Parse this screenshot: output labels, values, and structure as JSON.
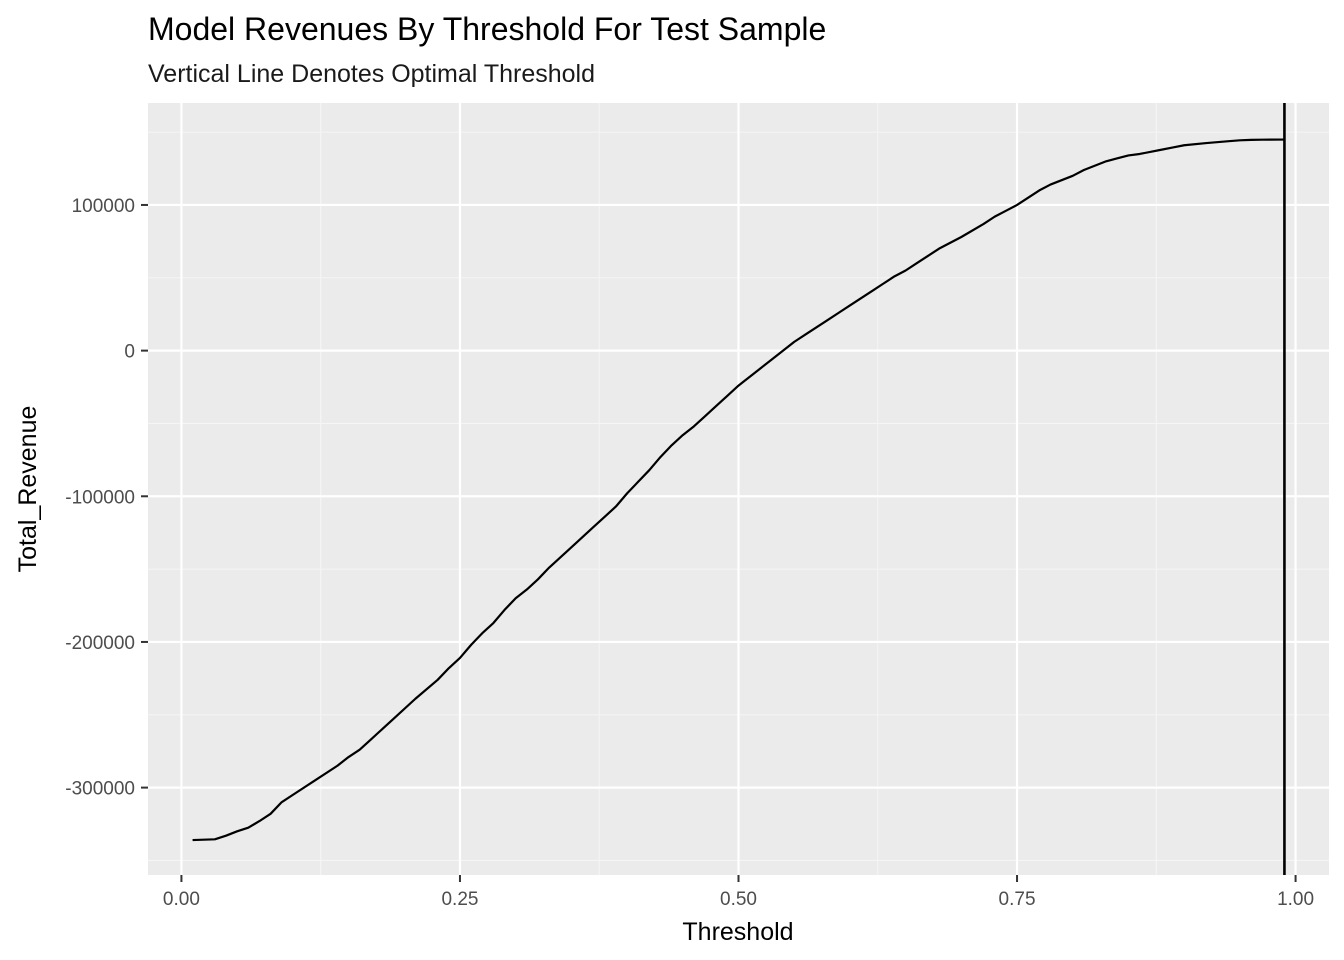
{
  "chart_data": {
    "type": "line",
    "title": "Model Revenues By Threshold For Test Sample",
    "subtitle": "Vertical Line Denotes Optimal Threshold",
    "xlabel": "Threshold",
    "ylabel": "Total_Revenue",
    "xlim": [
      -0.03,
      1.03
    ],
    "ylim": [
      -360000,
      170000
    ],
    "x_ticks": [
      0.0,
      0.25,
      0.5,
      0.75,
      1.0
    ],
    "x_tick_labels": [
      "0.00",
      "0.25",
      "0.50",
      "0.75",
      "1.00"
    ],
    "y_ticks": [
      -300000,
      -200000,
      -100000,
      0,
      100000
    ],
    "y_tick_labels": [
      "-300000",
      "-200000",
      "-100000",
      "0",
      "100000"
    ],
    "grid": true,
    "vline_x": 0.99,
    "series": [
      {
        "color": "#000000",
        "x": [
          0.01,
          0.03,
          0.04,
          0.05,
          0.06,
          0.07,
          0.08,
          0.09,
          0.1,
          0.12,
          0.14,
          0.15,
          0.16,
          0.17,
          0.19,
          0.21,
          0.23,
          0.24,
          0.25,
          0.26,
          0.27,
          0.28,
          0.29,
          0.3,
          0.31,
          0.32,
          0.33,
          0.35,
          0.37,
          0.38,
          0.39,
          0.4,
          0.42,
          0.43,
          0.44,
          0.45,
          0.46,
          0.47,
          0.48,
          0.49,
          0.5,
          0.51,
          0.52,
          0.53,
          0.54,
          0.55,
          0.56,
          0.57,
          0.58,
          0.59,
          0.6,
          0.61,
          0.62,
          0.63,
          0.64,
          0.65,
          0.66,
          0.67,
          0.68,
          0.7,
          0.72,
          0.73,
          0.74,
          0.75,
          0.76,
          0.77,
          0.78,
          0.79,
          0.8,
          0.81,
          0.82,
          0.83,
          0.84,
          0.85,
          0.86,
          0.87,
          0.88,
          0.89,
          0.9,
          0.92,
          0.94,
          0.95,
          0.96,
          0.97,
          0.99
        ],
        "y": [
          -336000,
          -335500,
          -333000,
          -330000,
          -327500,
          -323000,
          -318000,
          -310000,
          -305000,
          -295000,
          -285000,
          -279000,
          -274000,
          -267000,
          -253000,
          -239000,
          -226000,
          -218000,
          -211000,
          -202000,
          -194000,
          -187000,
          -178000,
          -170000,
          -164000,
          -157000,
          -149000,
          -135000,
          -121000,
          -114000,
          -107000,
          -98000,
          -82000,
          -73000,
          -65000,
          -58000,
          -52000,
          -45000,
          -38000,
          -31000,
          -24000,
          -18000,
          -12000,
          -6000,
          0,
          6000,
          11000,
          16000,
          21000,
          26000,
          31000,
          36000,
          41000,
          46000,
          51000,
          55000,
          60000,
          65000,
          70000,
          78000,
          87000,
          92000,
          96000,
          100000,
          105000,
          110000,
          114000,
          117000,
          120000,
          124000,
          127000,
          130000,
          132000,
          134000,
          135000,
          136500,
          138000,
          139500,
          141000,
          142500,
          143800,
          144400,
          144700,
          144800,
          144900
        ]
      }
    ]
  }
}
